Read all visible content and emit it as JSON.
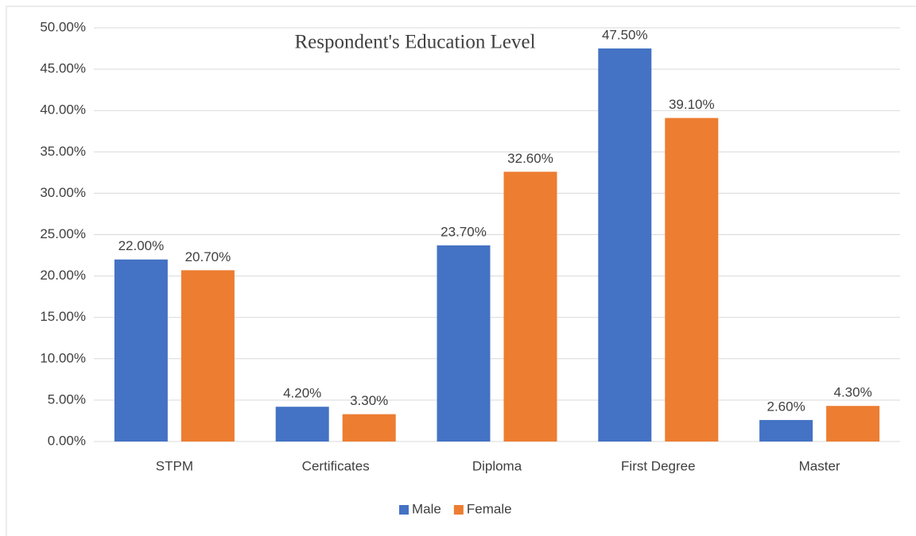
{
  "chart_data": {
    "type": "bar",
    "title": "Respondent's Education Level",
    "categories": [
      "STPM",
      "Certificates",
      "Diploma",
      "First Degree",
      "Master"
    ],
    "series": [
      {
        "name": "Male",
        "color": "#4472c4",
        "values": [
          22.0,
          4.2,
          23.7,
          47.5,
          2.6
        ],
        "value_labels": [
          "22.00%",
          "4.20%",
          "23.70%",
          "47.50%",
          "2.60%"
        ]
      },
      {
        "name": "Female",
        "color": "#ed7d31",
        "values": [
          20.7,
          3.3,
          32.6,
          39.1,
          4.3
        ],
        "value_labels": [
          "20.70%",
          "3.30%",
          "32.60%",
          "39.10%",
          "4.30%"
        ]
      }
    ],
    "ylim": [
      0,
      50
    ],
    "yticks": [
      {
        "value": 0,
        "label": "0.00%"
      },
      {
        "value": 5,
        "label": "5.00%"
      },
      {
        "value": 10,
        "label": "10.00%"
      },
      {
        "value": 15,
        "label": "15.00%"
      },
      {
        "value": 20,
        "label": "20.00%"
      },
      {
        "value": 25,
        "label": "25.00%"
      },
      {
        "value": 30,
        "label": "30.00%"
      },
      {
        "value": 35,
        "label": "35.00%"
      },
      {
        "value": 40,
        "label": "40.00%"
      },
      {
        "value": 45,
        "label": "45.00%"
      },
      {
        "value": 50,
        "label": "50.00%"
      }
    ],
    "grid": true,
    "legend": "bottom"
  }
}
